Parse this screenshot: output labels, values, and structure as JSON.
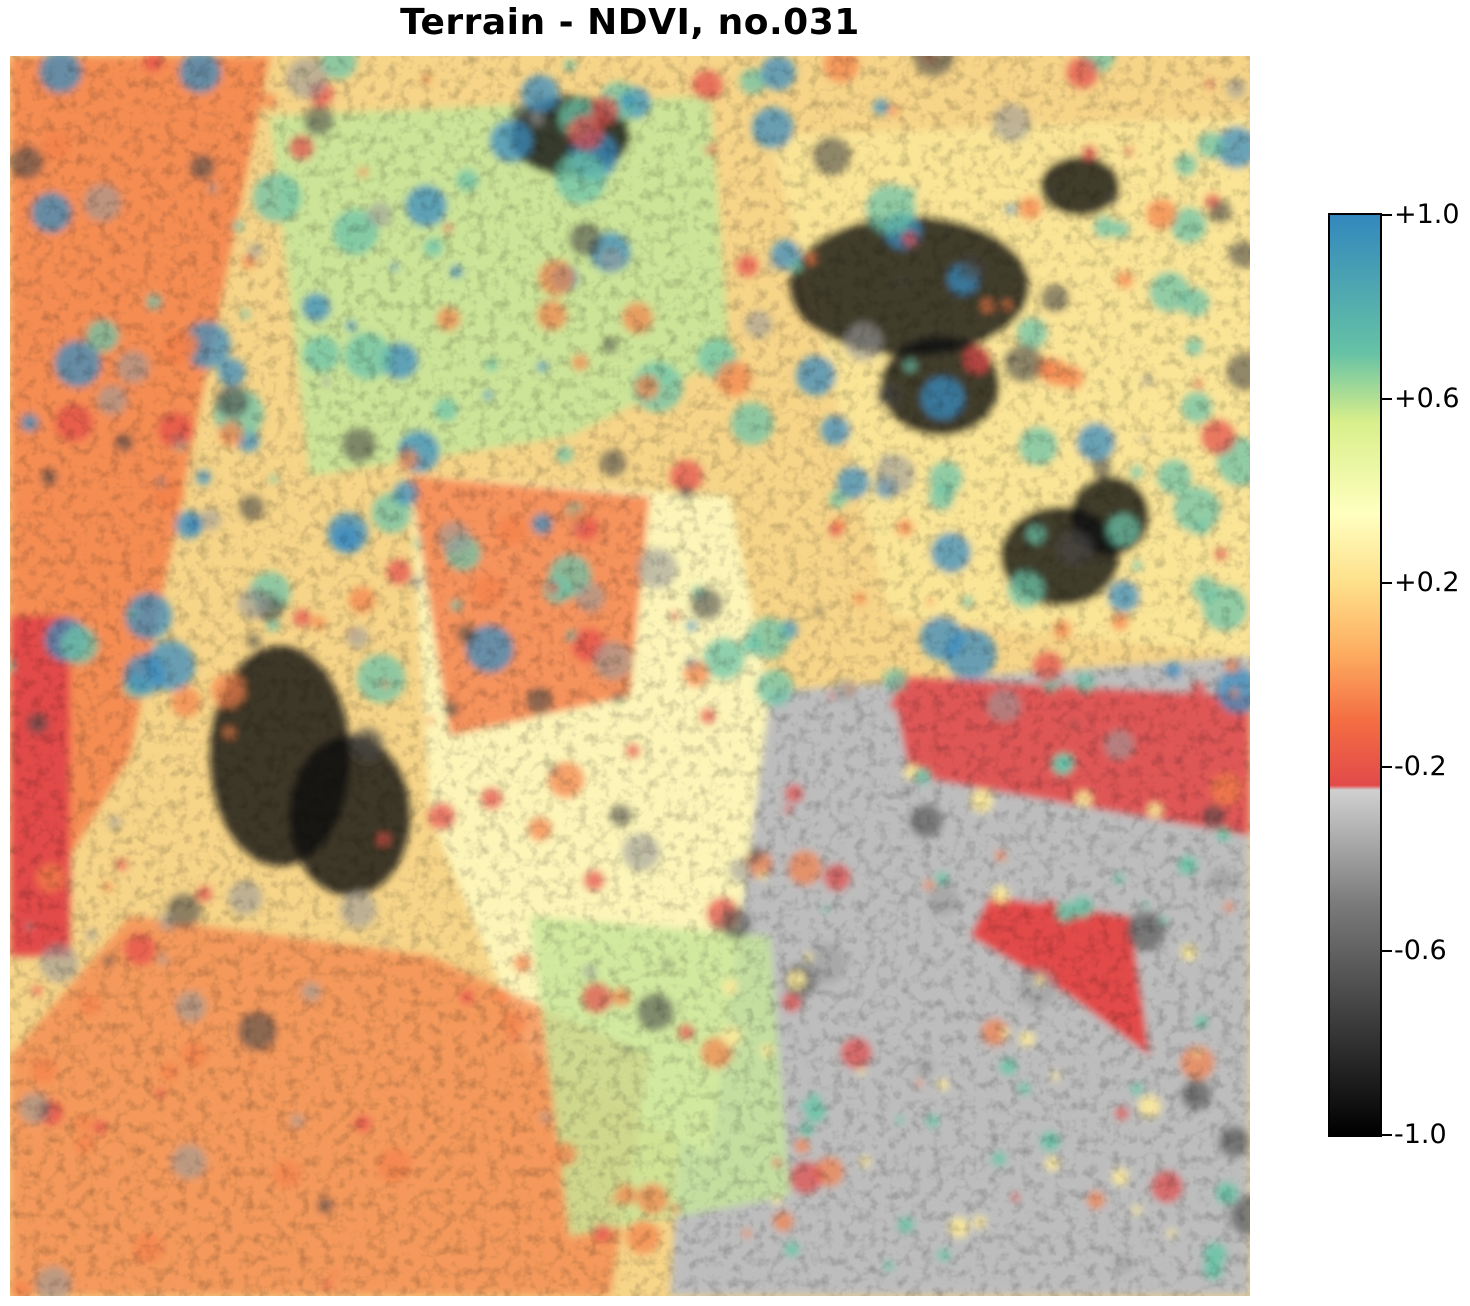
{
  "title": "Terrain - NDVI, no.031",
  "colorbar": {
    "range": [
      -1.0,
      1.0
    ],
    "ticks": [
      {
        "value": 1.0,
        "label": "+1.0"
      },
      {
        "value": 0.6,
        "label": "+0.6"
      },
      {
        "value": 0.2,
        "label": "+0.2"
      },
      {
        "value": -0.2,
        "label": "-0.2"
      },
      {
        "value": -0.6,
        "label": "-0.6"
      },
      {
        "value": -1.0,
        "label": "-1.0"
      }
    ],
    "stops": [
      {
        "value": -1.0,
        "color": "#000000"
      },
      {
        "value": -0.5,
        "color": "#7a7a7a"
      },
      {
        "value": -0.25,
        "color": "#d0d0d0"
      },
      {
        "value": -0.24,
        "color": "#e24a4a"
      },
      {
        "value": -0.1,
        "color": "#f46d43"
      },
      {
        "value": 0.05,
        "color": "#fdae61"
      },
      {
        "value": 0.2,
        "color": "#fee08b"
      },
      {
        "value": 0.35,
        "color": "#ffffbf"
      },
      {
        "value": 0.55,
        "color": "#d9ef8b"
      },
      {
        "value": 0.7,
        "color": "#66c2a5"
      },
      {
        "value": 1.0,
        "color": "#3288bd"
      }
    ]
  },
  "colors": {
    "gray_water": "#bdbdbd",
    "dark_gray": "#4a4a4a",
    "red": "#e24a4a",
    "orange": "#f4804a",
    "yellow": "#fbe99a",
    "pale": "#fdf5b8",
    "green": "#c6e699",
    "teal": "#6cc3a8",
    "blue": "#3a8cc0",
    "black": "#111111"
  }
}
